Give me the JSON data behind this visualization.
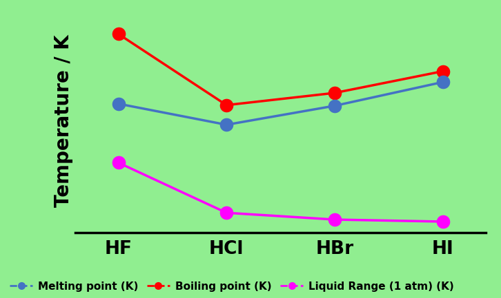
{
  "categories": [
    "HF",
    "HCl",
    "HBr",
    "HI"
  ],
  "melting_points": [
    190,
    159,
    187,
    222
  ],
  "boiling_points": [
    293,
    188,
    206,
    238
  ],
  "liquid_range": [
    103,
    29,
    19,
    16
  ],
  "background_color": "#90EE90",
  "melting_color": "#4472C4",
  "boiling_color": "#FF0000",
  "liquid_range_color": "#FF00FF",
  "ylabel": "Temperature / K",
  "ylim_min": 0,
  "ylim_max": 330,
  "marker_size": 200,
  "linewidth": 2.5,
  "legend_melting": "Melting point (K)",
  "legend_boiling": "Boiling point (K)",
  "legend_liquid": "Liquid Range (1 atm) (K)",
  "axis_label_fontsize": 20,
  "tick_fontsize": 19,
  "legend_fontsize": 11
}
